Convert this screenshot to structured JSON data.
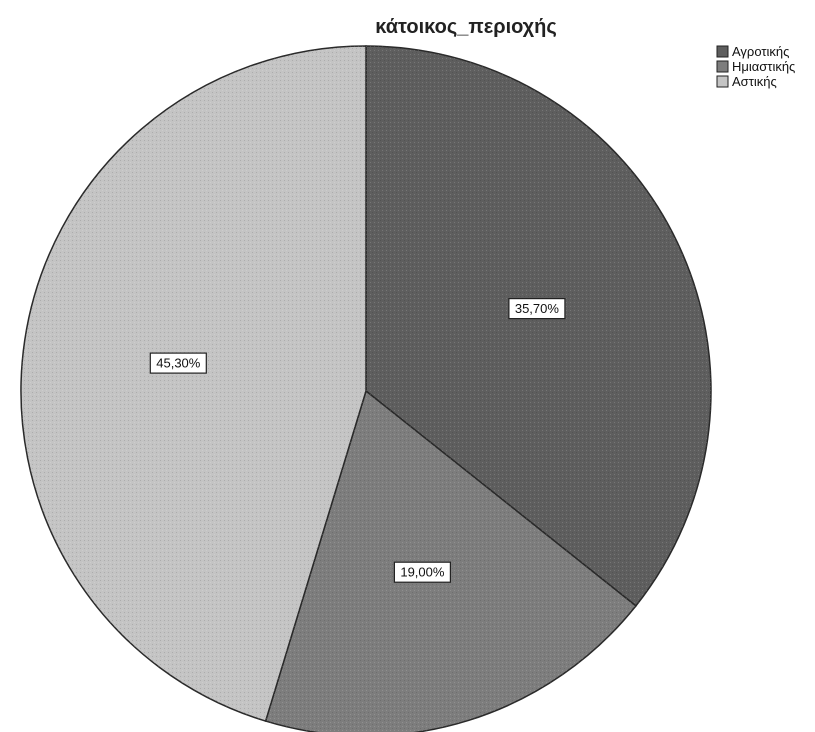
{
  "chart_data": {
    "type": "pie",
    "title": "κάτοικος_περιοχής",
    "legend_position": "top-right",
    "start_angle_deg": 0,
    "direction": "clockwise",
    "slices": [
      {
        "label": "Αγροτικής",
        "value": 35.7,
        "display": "35,70%",
        "color": "#5e5e5e"
      },
      {
        "label": "Ημιαστικής",
        "value": 19.0,
        "display": "19,00%",
        "color": "#7d7d7d"
      },
      {
        "label": "Αστικής",
        "value": 45.3,
        "display": "45,30%",
        "color": "#c4c4c4"
      }
    ]
  }
}
